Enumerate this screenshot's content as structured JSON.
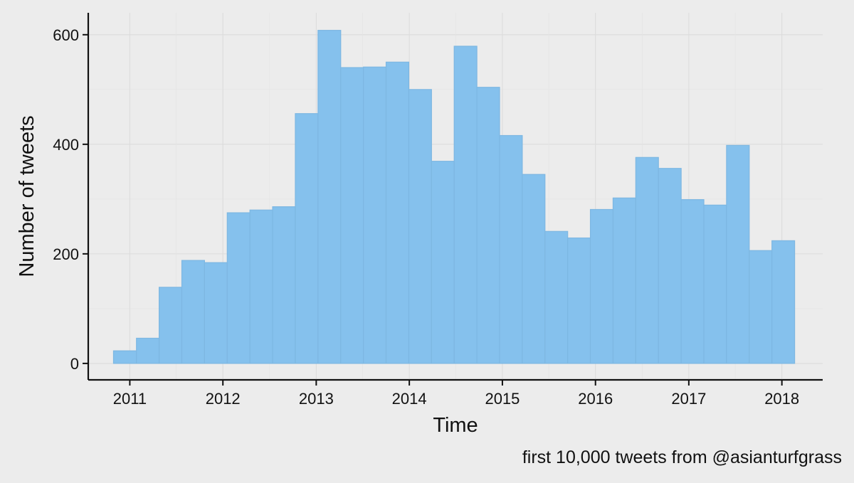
{
  "chart_data": {
    "type": "bar",
    "title": "",
    "xlabel": "Time",
    "ylabel": "Number of tweets",
    "caption": "first 10,000 tweets from @asianturfgrass",
    "x_ticks": [
      "2011",
      "2012",
      "2013",
      "2014",
      "2015",
      "2016",
      "2017",
      "2018"
    ],
    "y_ticks": [
      "0",
      "200",
      "400",
      "600"
    ],
    "xlim": [
      "2010-07-22",
      "2018-06-10"
    ],
    "ylim": [
      -30,
      640
    ],
    "grid": true,
    "bin_edges": [
      "2010-10-29",
      "2011-01-27",
      "2011-04-26",
      "2011-07-24",
      "2011-10-21",
      "2012-01-18",
      "2012-04-16",
      "2012-07-14",
      "2012-10-11",
      "2013-01-08",
      "2013-04-07",
      "2013-07-05",
      "2013-10-02",
      "2013-12-30",
      "2014-03-29",
      "2014-06-26",
      "2014-09-23",
      "2014-12-21",
      "2015-03-20",
      "2015-06-17",
      "2015-09-14",
      "2015-12-12",
      "2016-03-10",
      "2016-06-07",
      "2016-09-04",
      "2016-12-02",
      "2017-03-01",
      "2017-05-29",
      "2017-08-26",
      "2017-11-23",
      "2018-02-20"
    ],
    "values": [
      23,
      46,
      139,
      188,
      184,
      275,
      280,
      286,
      456,
      608,
      540,
      541,
      550,
      500,
      369,
      579,
      504,
      416,
      345,
      241,
      229,
      281,
      302,
      376,
      356,
      299,
      289,
      398,
      206,
      224
    ],
    "colors": {
      "bar_fill": "#85c1ed",
      "bar_edge": "#7db7e2",
      "background": "#ececec"
    }
  }
}
